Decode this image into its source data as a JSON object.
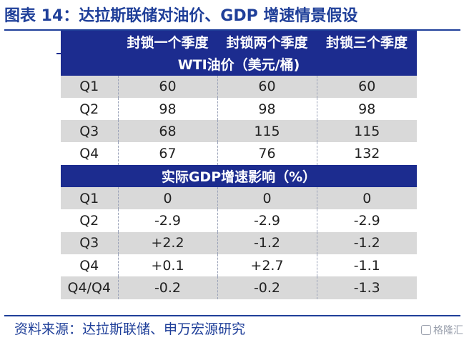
{
  "title": "图表 14：达拉斯联储对油价、GDP 增速情景假设",
  "columns": [
    "封锁一个季度",
    "封锁两个季度",
    "封锁三个季度"
  ],
  "section1": {
    "title": "WTI油价（美元/桶)",
    "rows": [
      {
        "label": "Q1",
        "values": [
          "60",
          "60",
          "60"
        ]
      },
      {
        "label": "Q2",
        "values": [
          "98",
          "98",
          "98"
        ]
      },
      {
        "label": "Q3",
        "values": [
          "68",
          "115",
          "115"
        ]
      },
      {
        "label": "Q4",
        "values": [
          "67",
          "76",
          "132"
        ]
      }
    ]
  },
  "section2": {
    "title": "实际GDP增速影响（%）",
    "rows": [
      {
        "label": "Q1",
        "values": [
          "0",
          "0",
          "0"
        ]
      },
      {
        "label": "Q2",
        "values": [
          "-2.9",
          "-2.9",
          "-2.9"
        ]
      },
      {
        "label": "Q3",
        "values": [
          "+2.2",
          "-1.2",
          "-1.2"
        ]
      },
      {
        "label": "Q4",
        "values": [
          "+0.1",
          "+2.7",
          "-1.1"
        ]
      },
      {
        "label": "Q4/Q4",
        "values": [
          "-0.2",
          "-0.2",
          "-1.3"
        ]
      }
    ]
  },
  "source": "资料来源：达拉斯联储、申万宏源研究",
  "watermark": "格隆汇",
  "colors": {
    "header_bg": "#1c2c8f",
    "title_color": "#1f3f99",
    "band_gray": "#d9d9d9"
  }
}
